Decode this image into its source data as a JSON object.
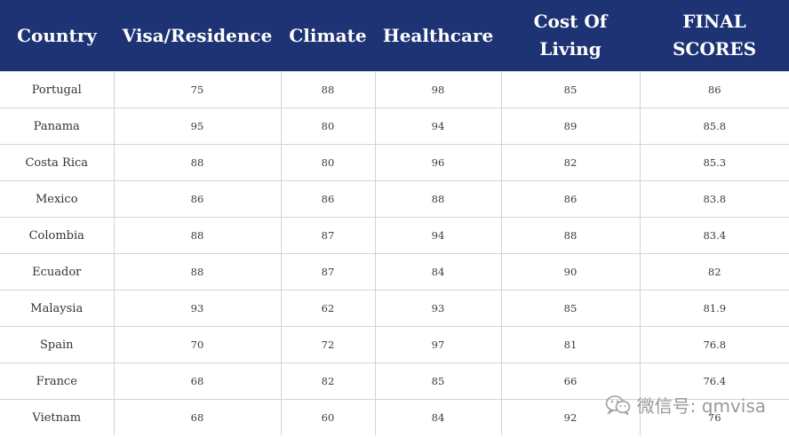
{
  "table": {
    "headers": [
      "Country",
      "Visa/Residence",
      "Climate",
      "Healthcare",
      "Cost Of Living",
      "FINAL SCORES"
    ],
    "rows": [
      [
        "Portugal",
        "75",
        "88",
        "98",
        "85",
        "86"
      ],
      [
        "Panama",
        "95",
        "80",
        "94",
        "89",
        "85.8"
      ],
      [
        "Costa Rica",
        "88",
        "80",
        "96",
        "82",
        "85.3"
      ],
      [
        "Mexico",
        "86",
        "86",
        "88",
        "86",
        "83.8"
      ],
      [
        "Colombia",
        "88",
        "87",
        "94",
        "88",
        "83.4"
      ],
      [
        "Ecuador",
        "88",
        "87",
        "84",
        "90",
        "82"
      ],
      [
        "Malaysia",
        "93",
        "62",
        "93",
        "85",
        "81.9"
      ],
      [
        "Spain",
        "70",
        "72",
        "97",
        "81",
        "76.8"
      ],
      [
        "France",
        "68",
        "82",
        "85",
        "66",
        "76.4"
      ],
      [
        "Vietnam",
        "68",
        "60",
        "84",
        "92",
        "76"
      ]
    ]
  },
  "watermark": {
    "text": "微信号: qmvisa",
    "icon": "wechat-icon"
  }
}
